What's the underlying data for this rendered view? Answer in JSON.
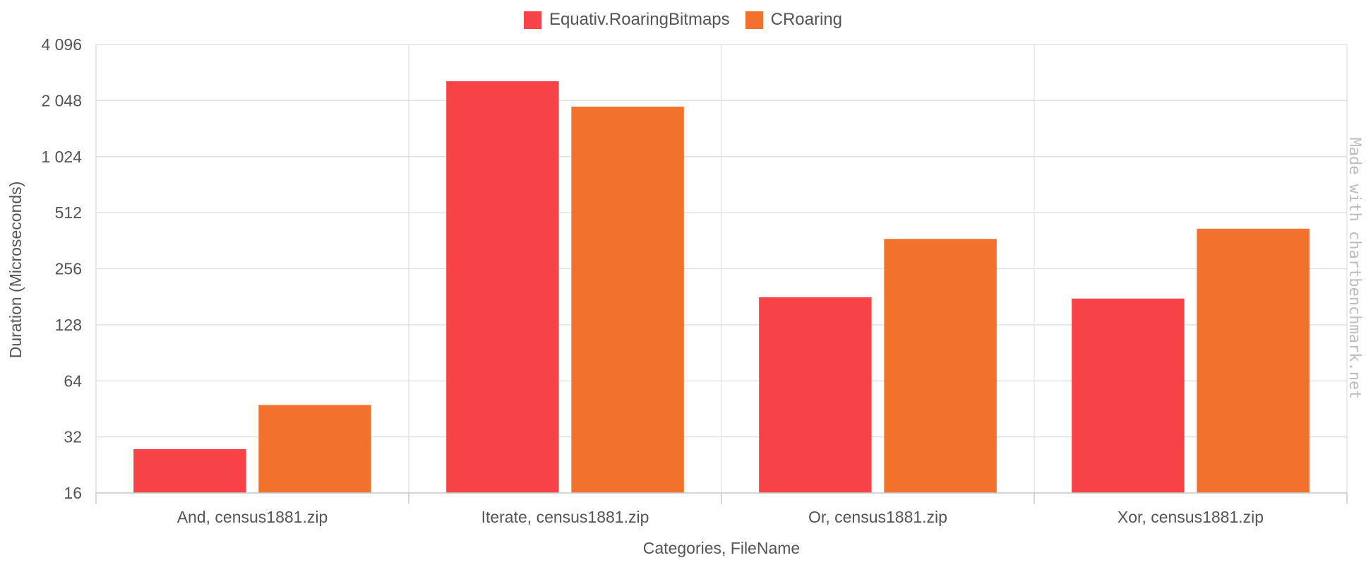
{
  "chart_data": {
    "type": "bar",
    "title": "",
    "categories": [
      "And, census1881.zip",
      "Iterate, census1881.zip",
      "Or, census1881.zip",
      "Xor, census1881.zip"
    ],
    "series": [
      {
        "name": "Equativ.RoaringBitmaps",
        "color": "#f74347",
        "values": [
          27.5,
          2600,
          180,
          177
        ]
      },
      {
        "name": "CRoaring",
        "color": "#f2722d",
        "values": [
          47.5,
          1900,
          370,
          420
        ]
      }
    ],
    "xlabel": "Categories, FileName",
    "ylabel": "Duration (Microseconds)",
    "yscale": "log2",
    "ylim": [
      16,
      4096
    ],
    "yticks": [
      16,
      32,
      64,
      128,
      256,
      512,
      1024,
      2048,
      4096
    ],
    "ytick_labels": [
      "16",
      "32",
      "64",
      "128",
      "256",
      "512",
      "1 024",
      "2 048",
      "4 096"
    ],
    "legend_position": "top-center",
    "grid": true
  },
  "watermark": "Made with chartbenchmark.net"
}
